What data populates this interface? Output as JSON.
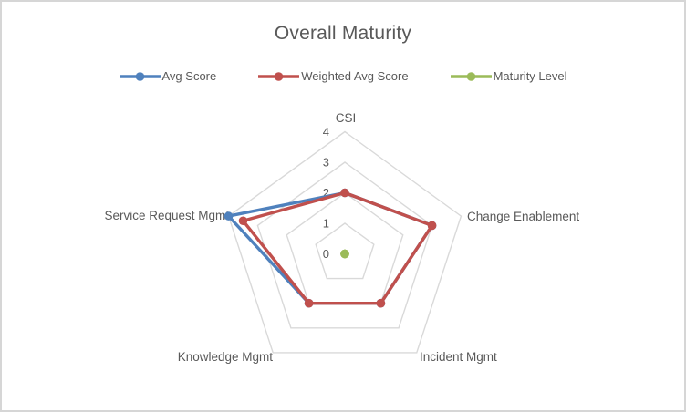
{
  "title": "Overall Maturity",
  "chart_data": {
    "type": "radar",
    "title": "Overall Maturity",
    "categories": [
      "CSI",
      "Change Enablement",
      "Incident Mgmt",
      "Knowledge Mgmt",
      "Service Request Mgmt"
    ],
    "series": [
      {
        "name": "Avg Score",
        "color": "#4F81BD",
        "values": [
          2,
          3,
          2,
          2,
          4
        ]
      },
      {
        "name": "Weighted Avg Score",
        "color": "#C0504D",
        "values": [
          2,
          3,
          2,
          2,
          3.5
        ]
      },
      {
        "name": "Maturity Level",
        "color": "#9BBB59",
        "values": [
          0,
          0,
          0,
          0,
          0
        ]
      }
    ],
    "radial_axis": {
      "min": 0,
      "max": 4,
      "ticks": [
        0,
        1,
        2,
        3,
        4
      ],
      "tick_labels": [
        "0",
        "1",
        "2",
        "3",
        "4"
      ]
    },
    "legend_position": "top",
    "grid": true,
    "grid_color": "#D9D9D9",
    "text_color": "#595959"
  }
}
